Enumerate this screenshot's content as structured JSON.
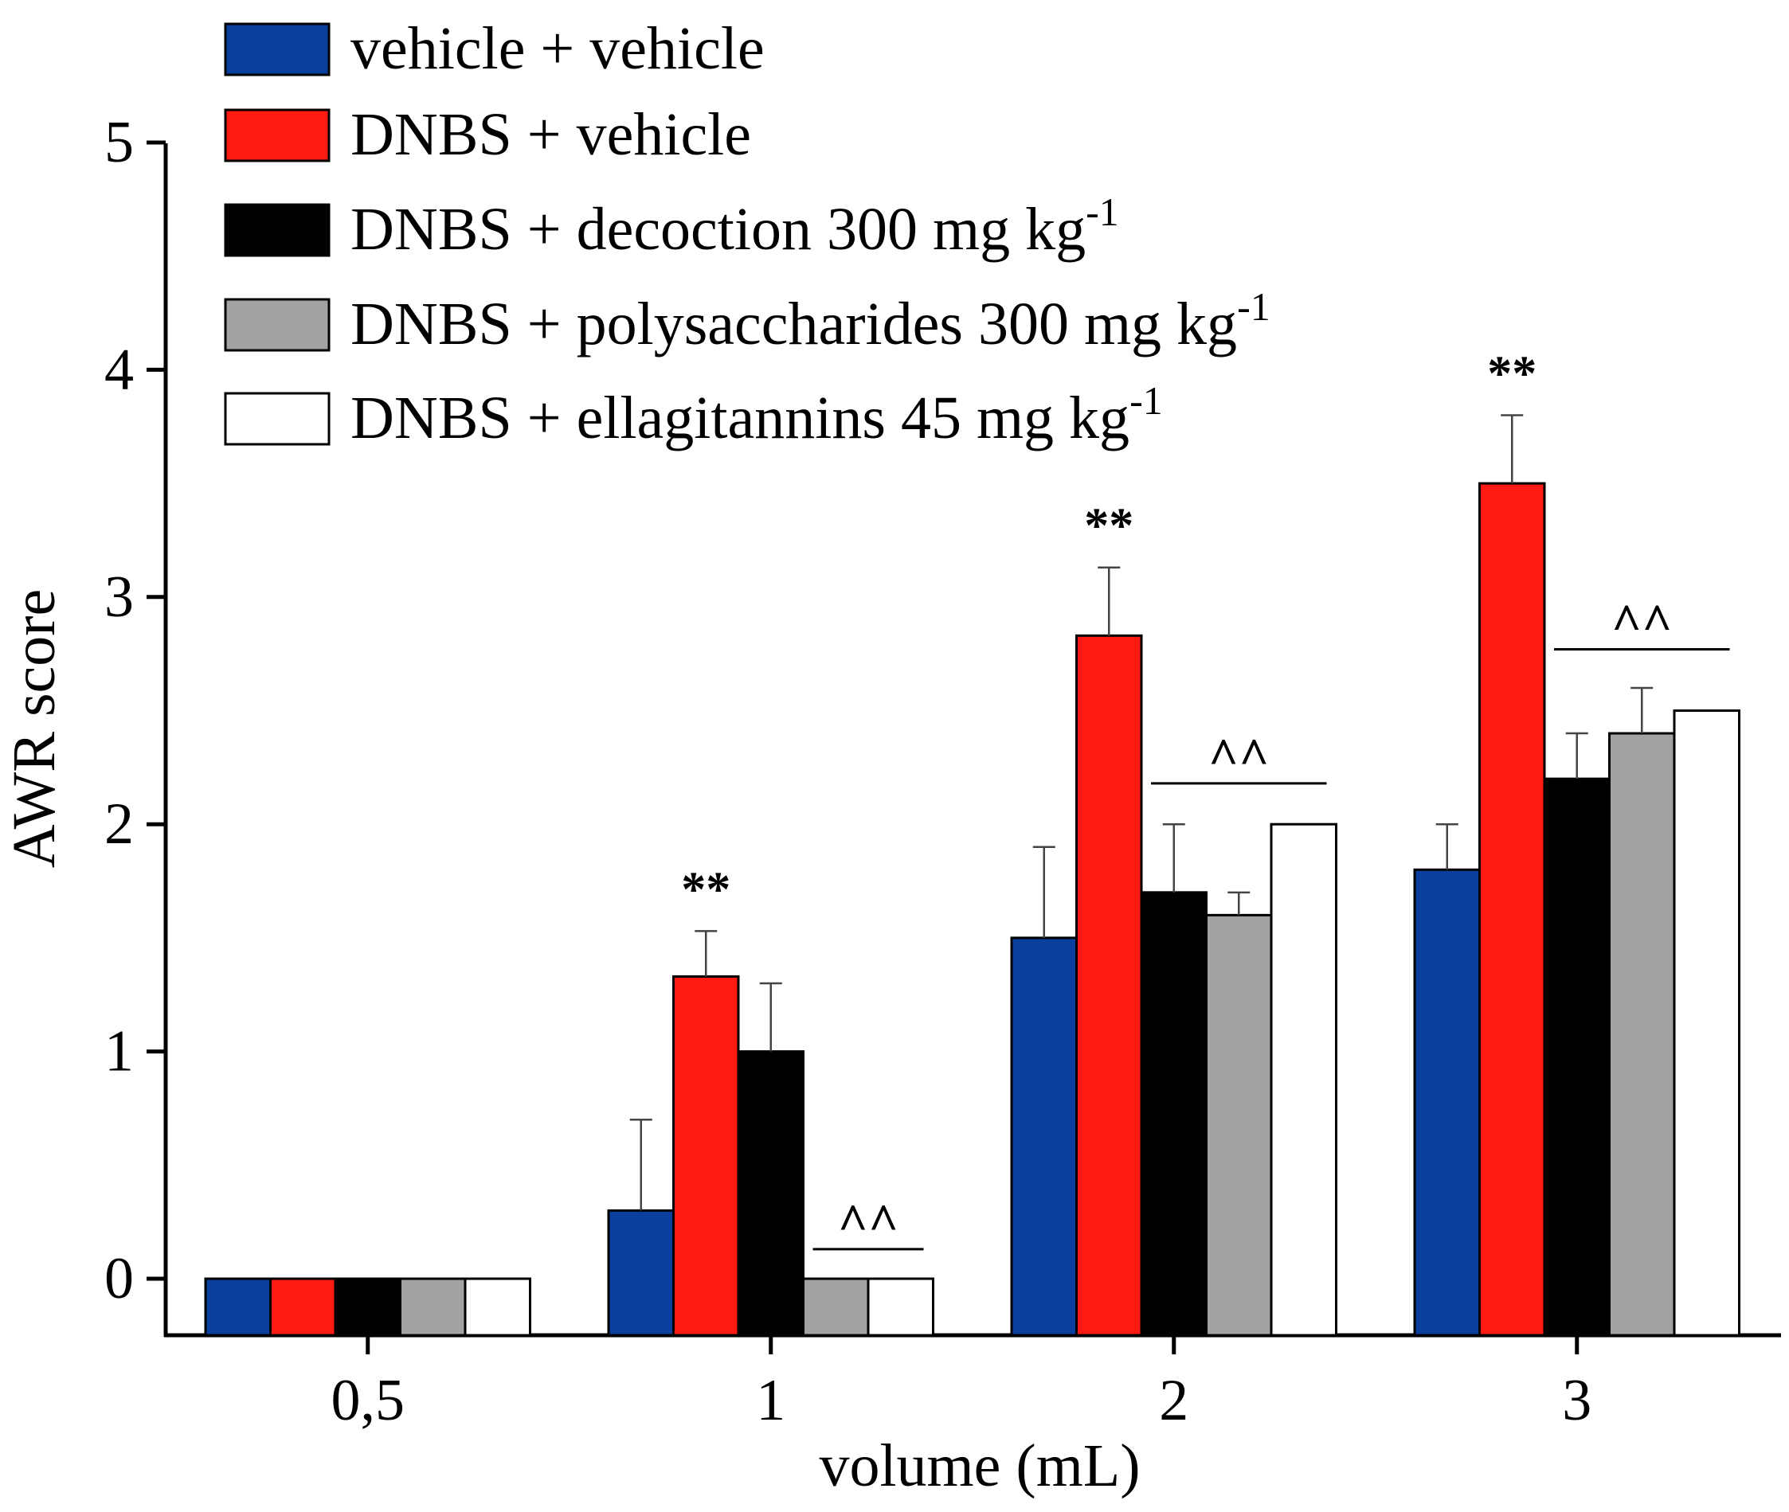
{
  "chart_data": {
    "type": "bar",
    "title": "",
    "xlabel": "volume (mL)",
    "ylabel": "AWR score",
    "ylim": [
      0,
      5
    ],
    "yticks": [
      "0",
      "1",
      "2",
      "3",
      "4",
      "5"
    ],
    "categories": [
      "0,5",
      "1",
      "2",
      "3"
    ],
    "grid": false,
    "legend_position": "top-left",
    "series": [
      {
        "name": "vehicle + vehicle",
        "color": "#0a3f9e",
        "values": [
          0,
          0.3,
          1.5,
          1.8
        ],
        "errors": [
          0,
          0.4,
          0.4,
          0.2
        ]
      },
      {
        "name": "DNBS + vehicle",
        "color": "#ff1a14",
        "values": [
          0,
          1.33,
          2.83,
          3.5
        ],
        "errors": [
          0,
          0.2,
          0.3,
          0.3
        ]
      },
      {
        "name": "DNBS + decoction 300 mg kg",
        "superscript": "-1",
        "color": "#000000",
        "values": [
          0,
          1.0,
          1.7,
          2.2
        ],
        "errors": [
          0,
          0.3,
          0.3,
          0.2
        ]
      },
      {
        "name": "DNBS + polysaccharides 300 mg kg",
        "superscript": "-1",
        "color": "#a0a3a2",
        "values": [
          0,
          0,
          1.6,
          2.4
        ],
        "errors": [
          0,
          0,
          0.1,
          0.2
        ]
      },
      {
        "name": "DNBS + ellagitannins 45 mg kg",
        "superscript": "-1",
        "color": "#ffffff",
        "values": [
          0,
          0,
          2.0,
          2.5
        ],
        "errors": [
          0,
          0,
          0,
          0
        ]
      }
    ],
    "annotations": [
      {
        "text": "**",
        "category": "1",
        "series": 1,
        "kind": "stars"
      },
      {
        "text": "**",
        "category": "2",
        "series": 1,
        "kind": "stars"
      },
      {
        "text": "**",
        "category": "3",
        "series": 1,
        "kind": "stars"
      },
      {
        "text": "^^",
        "category": "1",
        "from_series": 3,
        "to_series": 4,
        "kind": "caret",
        "level": 0.13
      },
      {
        "text": "^^",
        "category": "2",
        "from_series": 2,
        "to_series": 4,
        "kind": "caret",
        "level": 2.18
      },
      {
        "text": "^^",
        "category": "3",
        "from_series": 2,
        "to_series": 4,
        "kind": "caret",
        "level": 2.77
      }
    ]
  }
}
